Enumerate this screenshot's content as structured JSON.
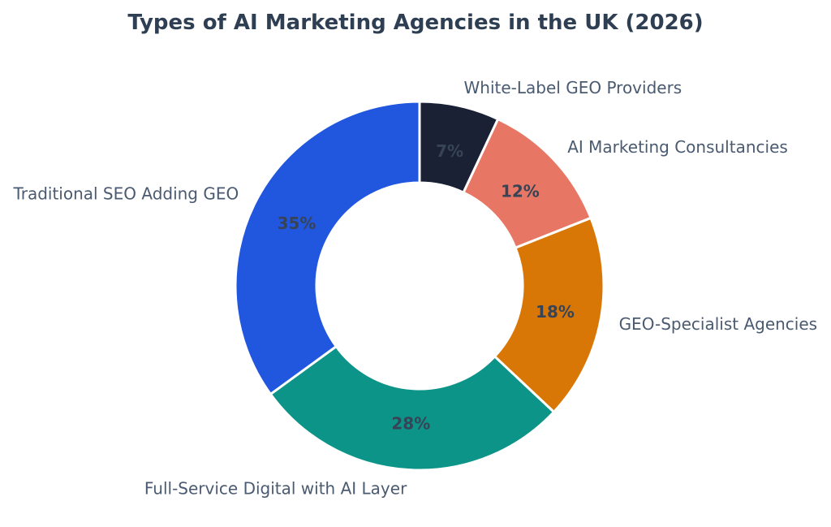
{
  "page": {
    "background": "#ffffff"
  },
  "chart_data": {
    "type": "pie",
    "subtype": "donut",
    "title": "Types of AI Marketing Agencies in the UK (2026)",
    "title_color": "#2e3f53",
    "unit": "%",
    "start_angle_deg": 0,
    "direction": "clockwise",
    "categories": [
      "White-Label GEO Providers",
      "AI Marketing Consultancies",
      "GEO-Specialist Agencies",
      "Full-Service Digital with AI Layer",
      "Traditional SEO Adding GEO"
    ],
    "values": [
      7,
      12,
      18,
      28,
      35
    ],
    "slice_labels": [
      "7%",
      "12%",
      "18%",
      "28%",
      "35%"
    ],
    "colors": [
      "#1b2135",
      "#e87664",
      "#d97706",
      "#0d9488",
      "#2157de"
    ],
    "wedge_edge_color": "#ffffff",
    "label_color": "#4a5a70",
    "pct_label_color": "#374457",
    "legend": "none",
    "labels_position": "outside",
    "pct_labels_position": "inside-ring"
  }
}
